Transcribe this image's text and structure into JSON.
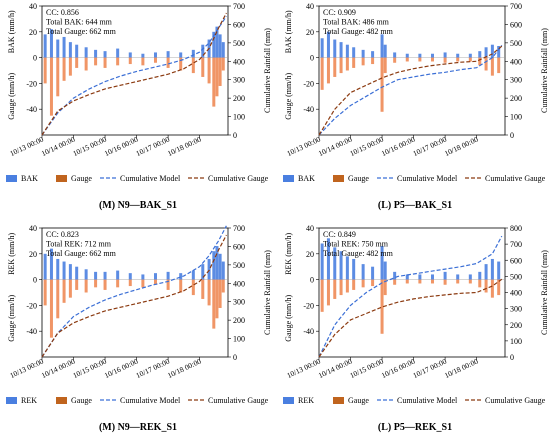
{
  "colors": {
    "model_bar": "#4a7fe0",
    "gauge_bar": "#ee8a55",
    "model_line": "#3b6fd6",
    "gauge_line": "#8b3a10",
    "legend_gauge_patch": "#c0641e",
    "axis": "#000000"
  },
  "panels": [
    {
      "caption": "(M) N9—BAK_S1",
      "stats": [
        "CC: 0.856",
        "Total BAK: 644 mm",
        "Total Gauge: 662 mm"
      ],
      "ylabel_top": "BAK (mm/h)",
      "ylabel_bottom": "Gauge (mm/h)",
      "ylabel_right": "Cumulative Rainfall (mm)",
      "legend": [
        "BAK",
        "Gauge",
        "Cumulative Model",
        "Cumulative Gauge"
      ]
    },
    {
      "caption": "(L) P5—BAK_S1",
      "stats": [
        "CC: 0.909",
        "Total BAK: 486 mm",
        "Total Gauge: 482 mm"
      ],
      "ylabel_top": "BAK (mm/h)",
      "ylabel_bottom": "Gauge (mm/h)",
      "ylabel_right": "Cumulative Rainfall (mm)",
      "legend": [
        "BAK",
        "Gauge",
        "Cumulative Model",
        "Cumulative Gauge"
      ]
    },
    {
      "caption": "(M) N9—REK_S1",
      "stats": [
        "CC: 0.823",
        "Total REK: 712 mm",
        "Total Gauge: 662 mm"
      ],
      "ylabel_top": "REK (mm/h)",
      "ylabel_bottom": "Gauge (mm/h)",
      "ylabel_right": "Cumulative Rainfall (mm)",
      "legend": [
        "REK",
        "Gauge",
        "Cumulative Model",
        "Cumulative Gauge"
      ]
    },
    {
      "caption": "(L) P5—REK_S1",
      "stats": [
        "CC: 0.849",
        "Total REK: 750 mm",
        "Total Gauge: 482 mm"
      ],
      "ylabel_top": "REK (mm/h)",
      "ylabel_bottom": "Gauge (mm/h)",
      "ylabel_right": "Cumulative Rainfall (mm)",
      "legend": [
        "REK",
        "Gauge",
        "Cumulative Model",
        "Cumulative Gauge"
      ]
    }
  ],
  "chart_data": [
    {
      "type": "bar",
      "panel": "(M) N9—BAK_S1",
      "x_ticks": [
        "10/13 00:00",
        "10/14 00:00",
        "10/15 00:00",
        "10/16 00:00",
        "10/17 00:00",
        "10/18 00:00"
      ],
      "x_range_days": [
        0,
        5.9
      ],
      "ylim_left": [
        -60,
        40
      ],
      "yticks_left": [
        -40,
        -20,
        0,
        20,
        40
      ],
      "ylim_right": [
        0,
        700
      ],
      "yticks_right": [
        0,
        100,
        200,
        300,
        400,
        500,
        600,
        700
      ],
      "series": [
        {
          "name": "BAK",
          "kind": "bar",
          "x": [
            0.1,
            0.3,
            0.5,
            0.7,
            0.9,
            1.1,
            1.4,
            1.7,
            2.0,
            2.4,
            2.8,
            3.2,
            3.6,
            4.0,
            4.4,
            4.8,
            5.1,
            5.3,
            5.45,
            5.55,
            5.65,
            5.75
          ],
          "values": [
            18,
            22,
            14,
            16,
            12,
            10,
            8,
            6,
            5,
            7,
            4,
            3,
            4,
            5,
            4,
            6,
            10,
            14,
            20,
            24,
            18,
            12
          ]
        },
        {
          "name": "Gauge",
          "kind": "bar",
          "x": [
            0.1,
            0.3,
            0.5,
            0.7,
            0.9,
            1.1,
            1.4,
            1.7,
            2.0,
            2.4,
            2.8,
            3.2,
            3.6,
            4.0,
            4.4,
            4.8,
            5.1,
            5.3,
            5.45,
            5.55,
            5.65,
            5.75
          ],
          "values": [
            -20,
            -45,
            -30,
            -18,
            -14,
            -8,
            -10,
            -6,
            -8,
            -6,
            -5,
            -6,
            -4,
            -8,
            -10,
            -12,
            -15,
            -20,
            -38,
            -30,
            -22,
            -10
          ]
        },
        {
          "name": "Cumulative Model",
          "kind": "line",
          "x": [
            0,
            0.5,
            1.0,
            1.5,
            2.0,
            2.5,
            3.0,
            3.5,
            4.0,
            4.5,
            5.0,
            5.3,
            5.6,
            5.85
          ],
          "values": [
            0,
            120,
            200,
            250,
            290,
            320,
            345,
            365,
            385,
            410,
            450,
            500,
            580,
            644
          ]
        },
        {
          "name": "Cumulative Gauge",
          "kind": "line",
          "x": [
            0,
            0.5,
            1.0,
            1.5,
            2.0,
            2.5,
            3.0,
            3.5,
            4.0,
            4.5,
            5.0,
            5.3,
            5.6,
            5.85
          ],
          "values": [
            0,
            130,
            185,
            220,
            250,
            270,
            290,
            310,
            330,
            360,
            410,
            470,
            580,
            662
          ]
        }
      ]
    },
    {
      "type": "bar",
      "panel": "(L) P5—BAK_S1",
      "x_ticks": [
        "10/13 00:00",
        "10/14 00:00",
        "10/15 00:00",
        "10/16 00:00",
        "10/17 00:00",
        "10/18 00:00"
      ],
      "x_range_days": [
        0,
        5.9
      ],
      "ylim_left": [
        -60,
        40
      ],
      "yticks_left": [
        -40,
        -20,
        0,
        20,
        40
      ],
      "ylim_right": [
        0,
        700
      ],
      "yticks_right": [
        0,
        100,
        200,
        300,
        400,
        500,
        600,
        700
      ],
      "series": [
        {
          "name": "BAK",
          "kind": "bar",
          "x": [
            0.1,
            0.3,
            0.5,
            0.7,
            0.9,
            1.1,
            1.4,
            1.7,
            2.0,
            2.1,
            2.4,
            2.8,
            3.2,
            3.6,
            4.0,
            4.4,
            4.8,
            5.1,
            5.3,
            5.5,
            5.7
          ],
          "values": [
            15,
            20,
            14,
            12,
            10,
            8,
            6,
            5,
            18,
            10,
            4,
            3,
            3,
            3,
            4,
            3,
            3,
            5,
            8,
            10,
            9
          ]
        },
        {
          "name": "Gauge",
          "kind": "bar",
          "x": [
            0.1,
            0.3,
            0.5,
            0.7,
            0.9,
            1.1,
            1.4,
            1.7,
            2.0,
            2.1,
            2.4,
            2.8,
            3.2,
            3.6,
            4.0,
            4.4,
            4.8,
            5.1,
            5.3,
            5.5,
            5.7
          ],
          "values": [
            -25,
            -20,
            -15,
            -12,
            -10,
            -8,
            -6,
            -5,
            -42,
            -12,
            -4,
            -3,
            -3,
            -3,
            -4,
            -3,
            -3,
            -6,
            -10,
            -14,
            -12
          ]
        },
        {
          "name": "Cumulative Model",
          "kind": "line",
          "x": [
            0,
            0.5,
            1.0,
            1.5,
            2.0,
            2.5,
            3.0,
            3.5,
            4.0,
            4.5,
            5.0,
            5.5,
            5.8
          ],
          "values": [
            0,
            90,
            160,
            210,
            260,
            300,
            315,
            330,
            340,
            355,
            365,
            420,
            486
          ]
        },
        {
          "name": "Cumulative Gauge",
          "kind": "line",
          "x": [
            0,
            0.5,
            1.0,
            1.5,
            2.0,
            2.5,
            3.0,
            3.5,
            4.0,
            4.5,
            5.0,
            5.5,
            5.8
          ],
          "values": [
            0,
            140,
            230,
            270,
            310,
            340,
            360,
            375,
            385,
            395,
            400,
            440,
            482
          ]
        }
      ]
    },
    {
      "type": "bar",
      "panel": "(M) N9—REK_S1",
      "x_ticks": [
        "10/13 00:00",
        "10/14 00:00",
        "10/15 00:00",
        "10/16 00:00",
        "10/17 00:00",
        "10/18 00:00"
      ],
      "x_range_days": [
        0,
        5.9
      ],
      "ylim_left": [
        -60,
        40
      ],
      "yticks_left": [
        -40,
        -20,
        0,
        20,
        40
      ],
      "ylim_right": [
        0,
        700
      ],
      "yticks_right": [
        0,
        100,
        200,
        300,
        400,
        500,
        600,
        700
      ],
      "series": [
        {
          "name": "REK",
          "kind": "bar",
          "x": [
            0.1,
            0.3,
            0.5,
            0.7,
            0.9,
            1.1,
            1.4,
            1.7,
            2.0,
            2.4,
            2.8,
            3.2,
            3.6,
            4.0,
            4.4,
            4.8,
            5.1,
            5.3,
            5.45,
            5.55,
            5.65,
            5.75
          ],
          "values": [
            20,
            24,
            16,
            14,
            12,
            10,
            8,
            6,
            6,
            7,
            5,
            4,
            5,
            6,
            5,
            7,
            12,
            16,
            22,
            26,
            20,
            14
          ]
        },
        {
          "name": "Gauge",
          "kind": "bar",
          "x": [
            0.1,
            0.3,
            0.5,
            0.7,
            0.9,
            1.1,
            1.4,
            1.7,
            2.0,
            2.4,
            2.8,
            3.2,
            3.6,
            4.0,
            4.4,
            4.8,
            5.1,
            5.3,
            5.45,
            5.55,
            5.65,
            5.75
          ],
          "values": [
            -20,
            -45,
            -30,
            -18,
            -14,
            -8,
            -10,
            -6,
            -8,
            -6,
            -5,
            -6,
            -4,
            -8,
            -10,
            -12,
            -15,
            -20,
            -38,
            -30,
            -22,
            -10
          ]
        },
        {
          "name": "Cumulative Model",
          "kind": "line",
          "x": [
            0,
            0.5,
            1.0,
            1.5,
            2.0,
            2.5,
            3.0,
            3.5,
            4.0,
            4.5,
            5.0,
            5.3,
            5.6,
            5.85
          ],
          "values": [
            0,
            130,
            220,
            270,
            310,
            340,
            365,
            390,
            410,
            440,
            490,
            550,
            630,
            712
          ]
        },
        {
          "name": "Cumulative Gauge",
          "kind": "line",
          "x": [
            0,
            0.5,
            1.0,
            1.5,
            2.0,
            2.5,
            3.0,
            3.5,
            4.0,
            4.5,
            5.0,
            5.3,
            5.6,
            5.85
          ],
          "values": [
            0,
            130,
            185,
            220,
            250,
            270,
            290,
            310,
            330,
            360,
            410,
            470,
            580,
            662
          ]
        }
      ]
    },
    {
      "type": "bar",
      "panel": "(L) P5—REK_S1",
      "x_ticks": [
        "10/13 00:00",
        "10/14 00:00",
        "10/15 00:00",
        "10/16 00:00",
        "10/17 00:00",
        "10/18 00:00"
      ],
      "x_range_days": [
        0,
        5.9
      ],
      "ylim_left": [
        -60,
        40
      ],
      "yticks_left": [
        -40,
        -20,
        0,
        20,
        40
      ],
      "ylim_right": [
        0,
        800
      ],
      "yticks_right": [
        0,
        100,
        200,
        300,
        400,
        500,
        600,
        700,
        800
      ],
      "series": [
        {
          "name": "REK",
          "kind": "bar",
          "x": [
            0.1,
            0.3,
            0.5,
            0.7,
            0.9,
            1.1,
            1.4,
            1.7,
            2.0,
            2.1,
            2.4,
            2.8,
            3.2,
            3.6,
            4.0,
            4.4,
            4.8,
            5.1,
            5.3,
            5.5,
            5.7
          ],
          "values": [
            28,
            32,
            25,
            22,
            18,
            16,
            12,
            10,
            26,
            14,
            6,
            4,
            4,
            4,
            6,
            4,
            4,
            6,
            12,
            16,
            14
          ]
        },
        {
          "name": "Gauge",
          "kind": "bar",
          "x": [
            0.1,
            0.3,
            0.5,
            0.7,
            0.9,
            1.1,
            1.4,
            1.7,
            2.0,
            2.1,
            2.4,
            2.8,
            3.2,
            3.6,
            4.0,
            4.4,
            4.8,
            5.1,
            5.3,
            5.5,
            5.7
          ],
          "values": [
            -25,
            -20,
            -15,
            -12,
            -10,
            -8,
            -6,
            -5,
            -42,
            -12,
            -4,
            -3,
            -3,
            -3,
            -4,
            -3,
            -3,
            -6,
            -10,
            -14,
            -12
          ]
        },
        {
          "name": "Cumulative Model",
          "kind": "line",
          "x": [
            0,
            0.5,
            1.0,
            1.5,
            2.0,
            2.5,
            3.0,
            3.5,
            4.0,
            4.5,
            5.0,
            5.5,
            5.8
          ],
          "values": [
            0,
            200,
            320,
            400,
            460,
            500,
            515,
            530,
            545,
            560,
            580,
            640,
            750
          ]
        },
        {
          "name": "Cumulative Gauge",
          "kind": "line",
          "x": [
            0,
            0.5,
            1.0,
            1.5,
            2.0,
            2.5,
            3.0,
            3.5,
            4.0,
            4.5,
            5.0,
            5.5,
            5.8
          ],
          "values": [
            0,
            140,
            230,
            270,
            310,
            340,
            360,
            375,
            385,
            395,
            400,
            440,
            482
          ]
        }
      ]
    }
  ]
}
